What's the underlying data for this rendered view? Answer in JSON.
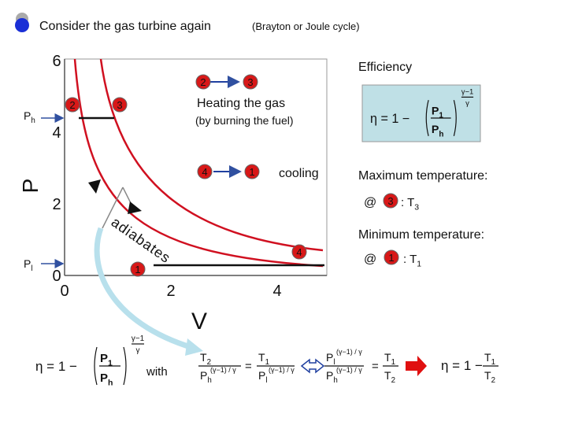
{
  "header": {
    "title": "Consider the gas turbine again",
    "subtitle": "(Brayton or Joule cycle)"
  },
  "plot": {
    "x_label": "V",
    "y_label": "P",
    "x_ticks": [
      0,
      2,
      4
    ],
    "y_ticks": [
      0,
      2,
      4,
      6
    ],
    "ph": {
      "main": "P",
      "sub": "h"
    },
    "pl": {
      "main": "P",
      "sub": "l"
    },
    "states": [
      "2",
      "3",
      "2",
      "3",
      "4",
      "1",
      "4",
      "1"
    ],
    "heating": "Heating the gas",
    "heating_note": "(by burning the fuel)",
    "cooling": "cooling",
    "adiabates": "adiabates"
  },
  "side": {
    "efficiency": "Efficiency",
    "box_eq": {
      "lhs": "η = 1 −",
      "num": "P",
      "num_sub": "1",
      "den": "P",
      "den_sub": "h",
      "exp_num": "γ−1",
      "exp_den": "γ"
    },
    "max_temp": "Maximum temperature:",
    "max_at": "@",
    "max_state": "3",
    "max_value": {
      "main": ":  T",
      "sub": "3"
    },
    "min_temp": "Minimum temperature:",
    "min_at": "@",
    "min_state": "1",
    "min_value": {
      "main": ": T",
      "sub": "1"
    }
  },
  "bottom": {
    "eq1": {
      "lhs": "η = 1 −",
      "num": "P",
      "num_sub": "1",
      "den": "P",
      "den_sub": "h",
      "exp_num": "γ−1",
      "exp_den": "γ"
    },
    "with": "with",
    "eq2": {
      "t2": "T",
      "t2_sub": "2",
      "ph": "P",
      "ph_sub": "h",
      "exp": "(γ−1) / γ",
      "eq": "=",
      "t1": "T",
      "t1_sub": "1",
      "pl": "P",
      "pl_sub": "l",
      "exp2": "(γ−1) / γ"
    },
    "eq3": {
      "pl": "P",
      "pl_sub": "l",
      "exp": "(γ−1) / γ",
      "ph": "P",
      "ph_sub": "h",
      "exp2": "(γ−1) / γ",
      "eq": "=",
      "t1": "T",
      "t1_sub": "1",
      "t2": "T",
      "t2_sub": "2"
    },
    "eq4": {
      "lhs": "η = 1 −",
      "num": "T",
      "num_sub": "1",
      "den": "T",
      "den_sub": "2"
    }
  }
}
